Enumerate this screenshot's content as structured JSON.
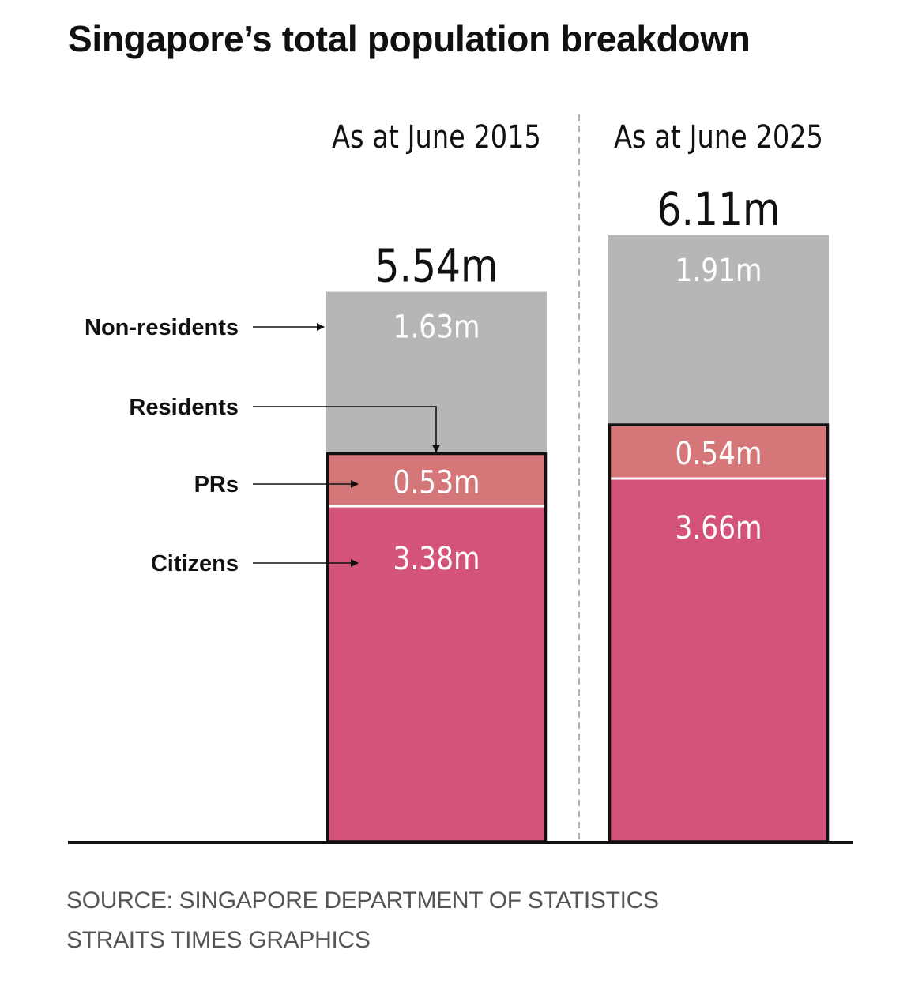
{
  "title": "Singapore’s total population breakdown",
  "colors": {
    "non_residents": "#b6b6b9",
    "prs": "#d57679",
    "citizens": "#d3537a",
    "outline": "#111111",
    "divider": "#b0b0b0"
  },
  "chart_data": {
    "type": "bar",
    "stacked": true,
    "categories": [
      "As at June 2015",
      "As at June 2025"
    ],
    "totals": [
      "5.54m",
      "6.11m"
    ],
    "series": [
      {
        "name": "Citizens",
        "values": [
          3.38,
          3.66
        ],
        "labels": [
          "3.38m",
          "3.66m"
        ]
      },
      {
        "name": "PRs",
        "values": [
          0.53,
          0.54
        ],
        "labels": [
          "0.53m",
          "0.54m"
        ]
      },
      {
        "name": "Non-residents",
        "values": [
          1.63,
          1.91
        ],
        "labels": [
          "1.63m",
          "1.91m"
        ]
      }
    ],
    "annotations": {
      "non_residents": "Non-residents",
      "residents": "Residents",
      "prs": "PRs",
      "citizens": "Citizens"
    },
    "residents_outline": true,
    "ylim": [
      0,
      6.11
    ]
  },
  "source": {
    "line1": "SOURCE: SINGAPORE DEPARTMENT OF STATISTICS",
    "line2": "STRAITS TIMES GRAPHICS"
  }
}
